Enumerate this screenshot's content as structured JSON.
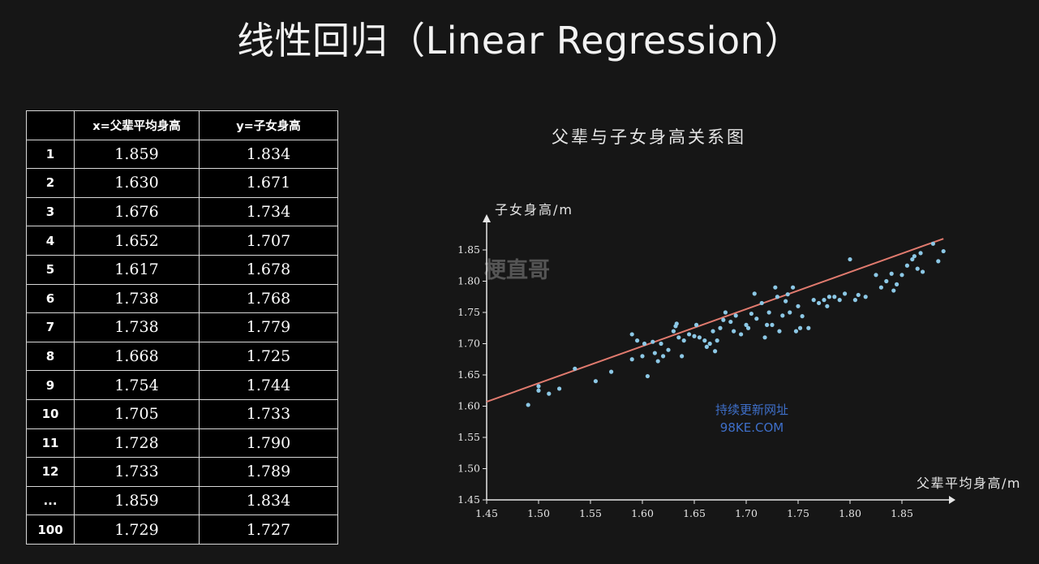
{
  "page_title": "线性回归（Linear Regression）",
  "table": {
    "headers": [
      "",
      "x=父辈平均身高",
      "y=子女身高"
    ],
    "rows": [
      {
        "idx": "1",
        "x": "1.859",
        "y": "1.834"
      },
      {
        "idx": "2",
        "x": "1.630",
        "y": "1.671"
      },
      {
        "idx": "3",
        "x": "1.676",
        "y": "1.734"
      },
      {
        "idx": "4",
        "x": "1.652",
        "y": "1.707"
      },
      {
        "idx": "5",
        "x": "1.617",
        "y": "1.678"
      },
      {
        "idx": "6",
        "x": "1.738",
        "y": "1.768"
      },
      {
        "idx": "7",
        "x": "1.738",
        "y": "1.779"
      },
      {
        "idx": "8",
        "x": "1.668",
        "y": "1.725"
      },
      {
        "idx": "9",
        "x": "1.754",
        "y": "1.744"
      },
      {
        "idx": "10",
        "x": "1.705",
        "y": "1.733"
      },
      {
        "idx": "11",
        "x": "1.728",
        "y": "1.790"
      },
      {
        "idx": "12",
        "x": "1.733",
        "y": "1.789"
      },
      {
        "idx": "...",
        "x": "1.859",
        "y": "1.834"
      },
      {
        "idx": "100",
        "x": "1.729",
        "y": "1.727"
      }
    ]
  },
  "watermarks": {
    "top": "梗直哥",
    "line1": "持续更新网址",
    "line2": "98KE.COM"
  },
  "colors": {
    "point": "#8cc8e6",
    "line": "#e07a6e",
    "watermark_blue": "#3e6fc9",
    "watermark_gray": "#555555"
  },
  "chart_data": {
    "type": "scatter",
    "title": "父辈与子女身高关系图",
    "xlabel": "父辈平均身高/m",
    "ylabel": "子女身高/m",
    "xlim": [
      1.45,
      1.9
    ],
    "ylim": [
      1.45,
      1.88
    ],
    "xticks": [
      "1.45",
      "1.50",
      "1.55",
      "1.60",
      "1.65",
      "1.70",
      "1.75",
      "1.80",
      "1.85"
    ],
    "yticks": [
      "1.45",
      "1.50",
      "1.55",
      "1.60",
      "1.65",
      "1.70",
      "1.75",
      "1.80",
      "1.85"
    ],
    "regression_line": {
      "x": [
        1.45,
        1.89
      ],
      "y": [
        1.607,
        1.868
      ]
    },
    "points": [
      [
        1.49,
        1.602
      ],
      [
        1.5,
        1.632
      ],
      [
        1.5,
        1.625
      ],
      [
        1.51,
        1.62
      ],
      [
        1.52,
        1.628
      ],
      [
        1.535,
        1.66
      ],
      [
        1.555,
        1.64
      ],
      [
        1.57,
        1.655
      ],
      [
        1.59,
        1.675
      ],
      [
        1.59,
        1.715
      ],
      [
        1.595,
        1.705
      ],
      [
        1.6,
        1.68
      ],
      [
        1.602,
        1.7
      ],
      [
        1.605,
        1.648
      ],
      [
        1.61,
        1.703
      ],
      [
        1.612,
        1.685
      ],
      [
        1.615,
        1.672
      ],
      [
        1.618,
        1.7
      ],
      [
        1.62,
        1.68
      ],
      [
        1.625,
        1.69
      ],
      [
        1.63,
        1.72
      ],
      [
        1.632,
        1.728
      ],
      [
        1.633,
        1.732
      ],
      [
        1.635,
        1.71
      ],
      [
        1.638,
        1.68
      ],
      [
        1.64,
        1.705
      ],
      [
        1.645,
        1.715
      ],
      [
        1.65,
        1.712
      ],
      [
        1.652,
        1.73
      ],
      [
        1.655,
        1.71
      ],
      [
        1.66,
        1.705
      ],
      [
        1.662,
        1.695
      ],
      [
        1.665,
        1.7
      ],
      [
        1.668,
        1.72
      ],
      [
        1.67,
        1.688
      ],
      [
        1.672,
        1.705
      ],
      [
        1.675,
        1.725
      ],
      [
        1.678,
        1.738
      ],
      [
        1.68,
        1.75
      ],
      [
        1.685,
        1.735
      ],
      [
        1.688,
        1.72
      ],
      [
        1.69,
        1.745
      ],
      [
        1.695,
        1.715
      ],
      [
        1.7,
        1.73
      ],
      [
        1.702,
        1.725
      ],
      [
        1.705,
        1.748
      ],
      [
        1.708,
        1.78
      ],
      [
        1.71,
        1.74
      ],
      [
        1.715,
        1.765
      ],
      [
        1.718,
        1.71
      ],
      [
        1.72,
        1.73
      ],
      [
        1.722,
        1.75
      ],
      [
        1.725,
        1.73
      ],
      [
        1.728,
        1.79
      ],
      [
        1.73,
        1.775
      ],
      [
        1.732,
        1.72
      ],
      [
        1.735,
        1.745
      ],
      [
        1.738,
        1.768
      ],
      [
        1.74,
        1.779
      ],
      [
        1.742,
        1.75
      ],
      [
        1.745,
        1.79
      ],
      [
        1.748,
        1.72
      ],
      [
        1.75,
        1.76
      ],
      [
        1.752,
        1.725
      ],
      [
        1.754,
        1.744
      ],
      [
        1.76,
        1.725
      ],
      [
        1.765,
        1.77
      ],
      [
        1.77,
        1.765
      ],
      [
        1.775,
        1.77
      ],
      [
        1.778,
        1.76
      ],
      [
        1.78,
        1.775
      ],
      [
        1.785,
        1.775
      ],
      [
        1.79,
        1.77
      ],
      [
        1.795,
        1.78
      ],
      [
        1.8,
        1.835
      ],
      [
        1.805,
        1.77
      ],
      [
        1.808,
        1.778
      ],
      [
        1.815,
        1.775
      ],
      [
        1.825,
        1.81
      ],
      [
        1.83,
        1.79
      ],
      [
        1.835,
        1.8
      ],
      [
        1.84,
        1.812
      ],
      [
        1.842,
        1.785
      ],
      [
        1.845,
        1.795
      ],
      [
        1.85,
        1.81
      ],
      [
        1.855,
        1.825
      ],
      [
        1.86,
        1.835
      ],
      [
        1.862,
        1.84
      ],
      [
        1.865,
        1.82
      ],
      [
        1.868,
        1.845
      ],
      [
        1.87,
        1.815
      ],
      [
        1.88,
        1.86
      ],
      [
        1.885,
        1.832
      ],
      [
        1.89,
        1.848
      ]
    ]
  }
}
